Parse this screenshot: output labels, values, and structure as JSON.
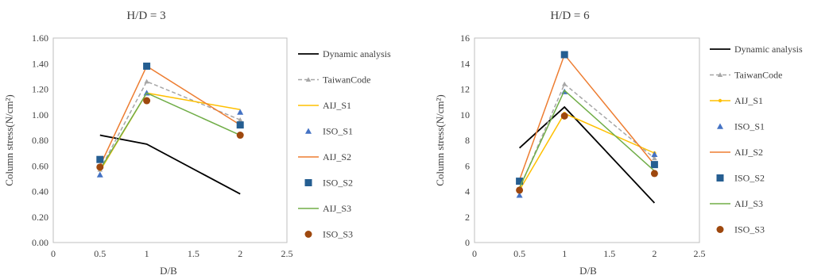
{
  "chart_data": [
    {
      "type": "line",
      "title": "H/D = 3",
      "xlabel": "D/B",
      "ylabel": "Column stress(N/cm²)",
      "xlim": [
        0,
        2.5
      ],
      "ylim": [
        0,
        1.6
      ],
      "xticks": [
        "0",
        "0.5",
        "1",
        "1.5",
        "2",
        "2.5"
      ],
      "yticks": [
        "0.00",
        "0.20",
        "0.40",
        "0.60",
        "0.80",
        "1.00",
        "1.20",
        "1.40",
        "1.60"
      ],
      "x": [
        0.5,
        1,
        2
      ],
      "grid": false,
      "legend_position": "right",
      "series": [
        {
          "name": "Dynamic analysis",
          "style": "line",
          "color": "#000000",
          "values": [
            0.84,
            0.77,
            0.38
          ]
        },
        {
          "name": "TaiwanCode",
          "style": "dashed-triangle",
          "color": "#a6a6a6",
          "values": [
            0.57,
            1.26,
            0.96
          ]
        },
        {
          "name": "AIJ_S1",
          "style": "line",
          "color": "#ffc000",
          "values": [
            0.56,
            1.17,
            1.04
          ]
        },
        {
          "name": "ISO_S1",
          "style": "triangle",
          "color": "#4472c4",
          "values": [
            0.53,
            1.17,
            1.02
          ]
        },
        {
          "name": "AIJ_S2",
          "style": "line",
          "color": "#ed7d31",
          "values": [
            0.6,
            1.38,
            0.92
          ]
        },
        {
          "name": "ISO_S2",
          "style": "square",
          "color": "#255e91",
          "values": [
            0.65,
            1.38,
            0.92
          ]
        },
        {
          "name": "AIJ_S3",
          "style": "line",
          "color": "#70ad47",
          "values": [
            0.57,
            1.17,
            0.84
          ]
        },
        {
          "name": "ISO_S3",
          "style": "circle",
          "color": "#9e480e",
          "values": [
            0.59,
            1.11,
            0.84
          ]
        }
      ]
    },
    {
      "type": "line",
      "title": "H/D = 6",
      "xlabel": "D/B",
      "ylabel": "Column stress(N/cm²)",
      "xlim": [
        0,
        2.5
      ],
      "ylim": [
        0,
        16
      ],
      "xticks": [
        "0",
        "0.5",
        "1",
        "1.5",
        "2",
        "2.5"
      ],
      "yticks": [
        "0",
        "2",
        "4",
        "6",
        "8",
        "10",
        "12",
        "14",
        "16"
      ],
      "x": [
        0.5,
        1,
        2
      ],
      "grid": false,
      "legend_position": "right",
      "series": [
        {
          "name": "Dynamic analysis",
          "style": "line",
          "color": "#000000",
          "values": [
            7.4,
            10.6,
            3.1
          ]
        },
        {
          "name": "TaiwanCode",
          "style": "dashed-triangle",
          "color": "#a6a6a6",
          "values": [
            4.2,
            12.4,
            6.6
          ]
        },
        {
          "name": "AIJ_S1",
          "style": "line-circle",
          "color": "#ffc000",
          "values": [
            4.1,
            10.1,
            7.0
          ]
        },
        {
          "name": "ISO_S1",
          "style": "triangle",
          "color": "#4472c4",
          "values": [
            3.7,
            11.8,
            6.9
          ]
        },
        {
          "name": "AIJ_S2",
          "style": "line",
          "color": "#ed7d31",
          "values": [
            4.9,
            14.7,
            6.1
          ]
        },
        {
          "name": "ISO_S2",
          "style": "square",
          "color": "#255e91",
          "values": [
            4.8,
            14.7,
            6.1
          ]
        },
        {
          "name": "AIJ_S3",
          "style": "line",
          "color": "#70ad47",
          "values": [
            4.3,
            11.9,
            5.6
          ]
        },
        {
          "name": "ISO_S3",
          "style": "circle",
          "color": "#9e480e",
          "values": [
            4.1,
            9.9,
            5.4
          ]
        }
      ]
    }
  ]
}
